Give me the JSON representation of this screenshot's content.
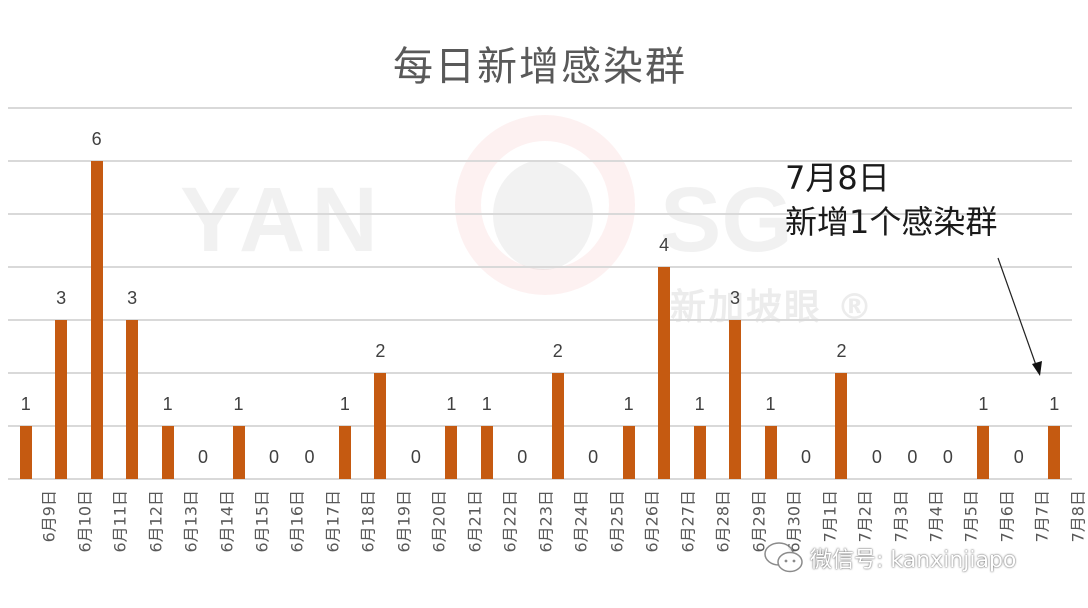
{
  "chart_data": {
    "type": "bar",
    "title": "每日新增感染群",
    "xlabel": "",
    "ylabel": "",
    "ylim": [
      0,
      7
    ],
    "grid": true,
    "legend": null,
    "bar_color": "#C55A11",
    "categories": [
      "6月9日",
      "6月10日",
      "6月11日",
      "6月12日",
      "6月13日",
      "6月14日",
      "6月15日",
      "6月16日",
      "6月17日",
      "6月18日",
      "6月19日",
      "6月20日",
      "6月21日",
      "6月22日",
      "6月23日",
      "6月24日",
      "6月25日",
      "6月26日",
      "6月27日",
      "6月28日",
      "6月29日",
      "6月30日",
      "7月1日",
      "7月2日",
      "7月3日",
      "7月4日",
      "7月5日",
      "7月6日",
      "7月7日",
      "7月8日"
    ],
    "values": [
      1,
      3,
      6,
      3,
      1,
      0,
      1,
      0,
      0,
      1,
      2,
      0,
      1,
      1,
      0,
      2,
      0,
      1,
      4,
      1,
      3,
      1,
      0,
      2,
      0,
      0,
      0,
      1,
      0,
      1
    ],
    "annotations": [
      {
        "text_line1": "7月8日",
        "text_line2": "新增1个感染群",
        "points_to": "7月8日"
      }
    ]
  },
  "title": "每日新增感染群",
  "annotation": {
    "line1": "7月8日",
    "line2": "新增1个感染群"
  },
  "watermarks": {
    "brand_left": "YAN",
    "brand_right": "SG",
    "brand_cn": "新加坡眼 ®",
    "wechat": "微信号: kanxinjiapo"
  },
  "colors": {
    "bar": "#C55A11",
    "grid": "#D9D9D9",
    "text": "#595959"
  }
}
